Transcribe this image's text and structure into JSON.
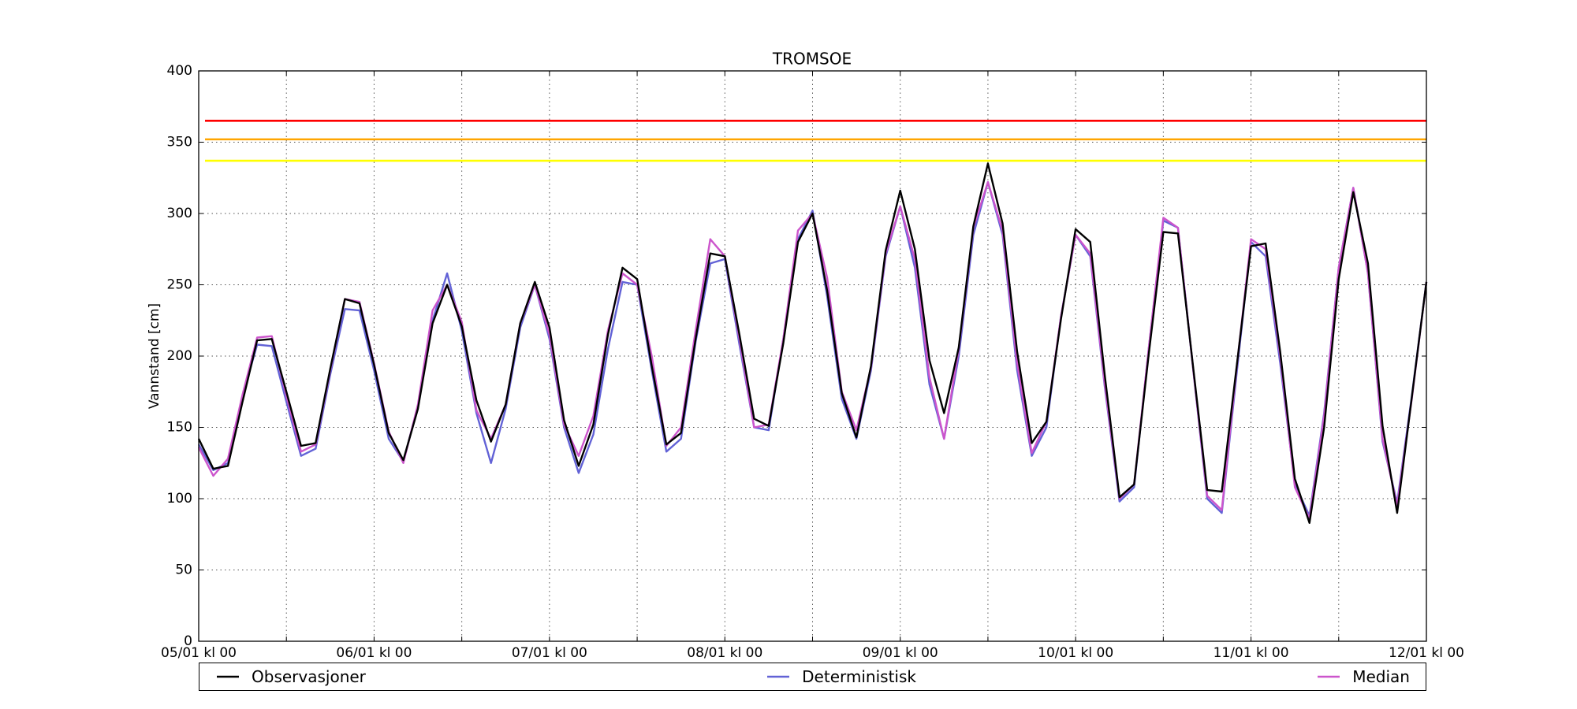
{
  "chart_data": {
    "type": "line",
    "title": "TROMSOE",
    "y_label": "Vannstand [cm]",
    "categories": [
      "05/01 kl 00",
      null,
      null,
      null,
      null,
      null,
      null,
      null,
      null,
      null,
      null,
      null,
      "06/01 kl 00",
      null,
      null,
      null,
      null,
      null,
      null,
      null,
      null,
      null,
      null,
      null,
      "07/01 kl 00",
      null,
      null,
      null,
      null,
      null,
      null,
      null,
      null,
      null,
      null,
      null,
      "08/01 kl 00",
      null,
      null,
      null,
      null,
      null,
      null,
      null,
      null,
      null,
      null,
      null,
      "09/01 kl 00",
      null,
      null,
      null,
      null,
      null,
      null,
      null,
      null,
      null,
      null,
      null,
      "10/01 kl 00",
      null,
      null,
      null,
      null,
      null,
      null,
      null,
      null,
      null,
      null,
      null,
      "11/01 kl 00",
      null,
      null,
      null,
      null,
      null,
      null,
      null,
      null,
      null,
      null,
      null,
      "12/01 kl 00"
    ],
    "series": [
      {
        "name": "Observasjoner",
        "color": "#000000",
        "values": [
          142,
          121,
          123,
          168,
          211,
          212,
          175,
          137,
          139,
          191,
          240,
          237,
          194,
          146,
          127,
          163,
          223,
          250,
          221,
          169,
          140,
          166,
          223,
          252,
          220,
          155,
          123,
          152,
          215,
          262,
          254,
          193,
          138,
          146,
          212,
          272,
          270,
          215,
          156,
          151,
          209,
          280,
          300,
          246,
          174,
          143,
          193,
          274,
          316,
          275,
          197,
          160,
          206,
          291,
          335,
          293,
          203,
          139,
          154,
          226,
          289,
          280,
          186,
          101,
          110,
          201,
          287,
          286,
          196,
          106,
          105,
          191,
          277,
          279,
          203,
          114,
          83,
          150,
          254,
          315,
          265,
          151,
          90,
          171,
          252
        ]
      },
      {
        "name": "Deterministisk",
        "color": "#6262d6",
        "values": [
          138,
          120,
          125,
          172,
          208,
          207,
          168,
          130,
          135,
          187,
          233,
          232,
          190,
          142,
          126,
          165,
          225,
          258,
          218,
          160,
          125,
          163,
          220,
          250,
          212,
          150,
          118,
          145,
          205,
          252,
          250,
          190,
          133,
          142,
          210,
          265,
          268,
          208,
          150,
          148,
          212,
          282,
          302,
          242,
          170,
          142,
          190,
          270,
          305,
          262,
          180,
          142,
          200,
          285,
          322,
          285,
          190,
          130,
          150,
          228,
          285,
          270,
          178,
          98,
          108,
          205,
          295,
          290,
          195,
          100,
          90,
          186,
          280,
          270,
          195,
          110,
          88,
          160,
          262,
          318,
          258,
          140,
          97,
          172,
          252
        ]
      },
      {
        "name": "Median",
        "color": "#cc55cc",
        "values": [
          136,
          116,
          128,
          173,
          213,
          214,
          172,
          133,
          138,
          190,
          240,
          238,
          195,
          147,
          125,
          166,
          232,
          250,
          224,
          162,
          142,
          166,
          223,
          250,
          215,
          152,
          130,
          158,
          218,
          258,
          250,
          200,
          137,
          150,
          218,
          282,
          270,
          212,
          150,
          152,
          212,
          288,
          300,
          255,
          175,
          148,
          192,
          272,
          305,
          268,
          185,
          142,
          205,
          290,
          322,
          288,
          195,
          132,
          154,
          228,
          285,
          272,
          180,
          100,
          110,
          205,
          297,
          290,
          195,
          102,
          92,
          190,
          282,
          275,
          200,
          108,
          86,
          158,
          262,
          318,
          258,
          142,
          95,
          170,
          252
        ]
      }
    ],
    "hlines": [
      {
        "value": 365,
        "color": "#ff0000"
      },
      {
        "value": 352,
        "color": "#ffa500"
      },
      {
        "value": 337,
        "color": "#ffff00"
      }
    ],
    "ylim": [
      0,
      400
    ],
    "yticks": [
      0,
      50,
      100,
      150,
      200,
      250,
      300,
      350,
      400
    ],
    "grid": true,
    "legend": "below"
  }
}
